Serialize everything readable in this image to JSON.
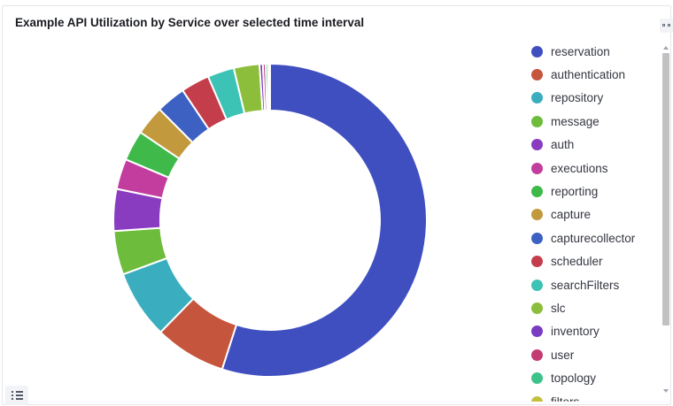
{
  "panel": {
    "title": "Example API Utilization by Service over selected time interval"
  },
  "controls": {
    "panel_options_icon": "panel-options-icon",
    "legend_toggle_icon": "list-icon"
  },
  "chart_data": {
    "type": "pie",
    "donut": true,
    "title": "Example API Utilization by Service over selected time interval",
    "legend_position": "right",
    "slices": [
      {
        "name": "reservation",
        "value": 56.0,
        "color": "#3f4fc0"
      },
      {
        "name": "authentication",
        "value": 7.5,
        "color": "#c6553d"
      },
      {
        "name": "repository",
        "value": 7.2,
        "color": "#3aaebe"
      },
      {
        "name": "message",
        "value": 4.6,
        "color": "#6ebc3c"
      },
      {
        "name": "auth",
        "value": 4.4,
        "color": "#8a3cc0"
      },
      {
        "name": "executions",
        "value": 3.2,
        "color": "#c33d9f"
      },
      {
        "name": "reporting",
        "value": 3.2,
        "color": "#3fba4a"
      },
      {
        "name": "capture",
        "value": 3.1,
        "color": "#c3993d"
      },
      {
        "name": "capturecollector",
        "value": 3.1,
        "color": "#3d60c3"
      },
      {
        "name": "scheduler",
        "value": 3.0,
        "color": "#c43d4a"
      },
      {
        "name": "searchFilters",
        "value": 2.8,
        "color": "#3dc3b5"
      },
      {
        "name": "slc",
        "value": 2.7,
        "color": "#8cbe3c"
      },
      {
        "name": "inventory",
        "value": 0.35,
        "color": "#7a3cc3"
      },
      {
        "name": "user",
        "value": 0.3,
        "color": "#c33d72"
      },
      {
        "name": "topology",
        "value": 0.25,
        "color": "#3dc38a"
      },
      {
        "name": "filters",
        "value": 0.2,
        "color": "#c3c03d"
      }
    ]
  }
}
